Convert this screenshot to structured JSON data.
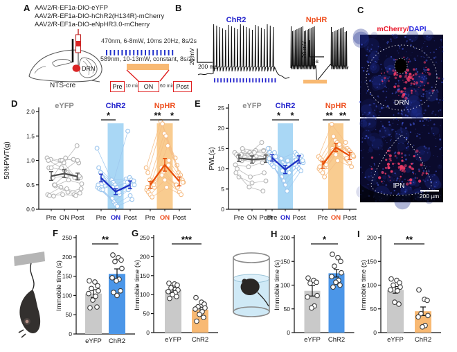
{
  "panels": {
    "A": "A",
    "B": "B",
    "C": "C",
    "D": "D",
    "E": "E",
    "F": "F",
    "G": "G",
    "H": "H",
    "I": "I"
  },
  "colors": {
    "chr2_blue": "#2222cc",
    "chr2_bar": "#4b96e8",
    "chr2_band": "#a9d7f5",
    "chr2_light": "#9cc6ee",
    "nphr_orange": "#ee4f1e",
    "nphr_bar": "#f8b973",
    "nphr_band": "#f9cc90",
    "nphr_light": "#f5bc84",
    "eyfp_gray": "#8c8c8c",
    "eyfp_dark": "#4d4d4d",
    "eyfp_light": "#b3b3b3",
    "gray_bar": "#c9c9c9",
    "red_accent": "#e02020"
  },
  "panelA": {
    "virus_lines": [
      "AAV2/R-EF1a-DIO-eYFP",
      "AAV2/R-EF1a-DIO-hChR2(H134R)-mCherry",
      "AAV2/R-EF1a-DIO-eNpHR3.0-mCherry"
    ],
    "injection_site": "DRN",
    "mouse_line": "NTS-cre",
    "protocol_blue": "470nm, 6-8mW, 10ms 20Hz, 8s/2s",
    "protocol_orange": "589nm, 10-13mW, constant, 8s/2s",
    "timeline": {
      "pre": "Pre",
      "pre_duration": "10 min",
      "on": "ON",
      "on_duration": "60 min",
      "post": "Post"
    }
  },
  "panelB": {
    "chr2_label": "ChR2",
    "nphr_label": "NpHR",
    "scale_left_v": "20 mV",
    "scale_left_h": "200 ms",
    "scale_mid_v": "20 mV",
    "scale_mid_h": "5s"
  },
  "panelC": {
    "title_red": "mCherry",
    "title_sep": "/",
    "title_blue": "DAPI",
    "region_top": "DRN",
    "region_bottom": "IPN",
    "scalebar": "200 µm"
  },
  "chart_data": [
    {
      "panel": "D",
      "type": "line",
      "ylabel": "50%PWT(g)",
      "ylim": [
        0,
        2
      ],
      "yticks": [
        "0.0",
        "0.5",
        "1.0",
        "1.5",
        "2.0"
      ],
      "categories": [
        "Pre",
        "ON",
        "Post"
      ],
      "groups": [
        {
          "name": "eYFP",
          "title_color": "#8c8c8c",
          "line_color": "#4d4d4d",
          "subject_color": "#b3b3b3",
          "band": null,
          "mean": [
            0.68,
            0.73,
            0.67
          ],
          "sem": [
            0.09,
            0.08,
            0.07
          ],
          "subjects": [
            [
              1.05,
              1.0,
              1.02
            ],
            [
              0.85,
              1.0,
              0.65
            ],
            [
              1.02,
              0.95,
              1.3
            ],
            [
              0.65,
              1.05,
              0.95
            ],
            [
              0.5,
              0.75,
              0.65
            ],
            [
              0.48,
              0.6,
              0.52
            ],
            [
              0.3,
              0.45,
              0.3
            ],
            [
              0.28,
              0.3,
              0.28
            ],
            [
              0.85,
              0.8,
              1.0
            ],
            [
              0.65,
              0.68,
              0.68
            ],
            [
              0.5,
              0.35,
              0.42
            ],
            [
              1.0,
              0.85,
              0.65
            ],
            [
              0.27,
              0.42,
              0.33
            ]
          ],
          "sig": []
        },
        {
          "name": "ChR2",
          "title_color": "#2222cc",
          "line_color": "#1b2fc4",
          "subject_color": "#9cc6ee",
          "band": "#a9d7f5",
          "mean": [
            0.64,
            0.36,
            0.5
          ],
          "sem": [
            0.08,
            0.06,
            0.08
          ],
          "subjects": [
            [
              1.25,
              0.6,
              0.62
            ],
            [
              0.85,
              0.55,
              1.6
            ],
            [
              0.75,
              0.5,
              0.65
            ],
            [
              0.65,
              0.45,
              0.6
            ],
            [
              0.6,
              0.38,
              0.55
            ],
            [
              0.48,
              0.3,
              0.5
            ],
            [
              0.45,
              0.22,
              0.45
            ],
            [
              0.42,
              0.15,
              0.4
            ],
            [
              0.4,
              0.1,
              0.28
            ],
            [
              0.4,
              0.06,
              0.2
            ],
            [
              0.55,
              0.35,
              0.58
            ],
            [
              0.5,
              0.45,
              0.55
            ]
          ],
          "sig": [
            {
              "pair": [
                0,
                1
              ],
              "stars": "*"
            }
          ]
        },
        {
          "name": "NpHR",
          "title_color": "#ee4f1e",
          "line_color": "#e8500a",
          "subject_color": "#f5bc84",
          "band": "#f9cc90",
          "mean": [
            0.5,
            0.91,
            0.57
          ],
          "sem": [
            0.07,
            0.13,
            0.09
          ],
          "subjects": [
            [
              0.85,
              1.8,
              1.05
            ],
            [
              0.75,
              1.75,
              0.9
            ],
            [
              0.6,
              1.55,
              0.75
            ],
            [
              0.55,
              1.5,
              0.7
            ],
            [
              0.5,
              1.3,
              0.6
            ],
            [
              0.45,
              1.0,
              0.55
            ],
            [
              0.4,
              0.85,
              0.5
            ],
            [
              0.35,
              0.75,
              0.45
            ],
            [
              0.3,
              0.6,
              0.35
            ],
            [
              0.25,
              0.45,
              0.3
            ],
            [
              0.5,
              0.9,
              0.55
            ],
            [
              0.45,
              0.7,
              0.5
            ]
          ],
          "sig": [
            {
              "pair": [
                0,
                1
              ],
              "stars": "**"
            },
            {
              "pair": [
                1,
                2
              ],
              "stars": "*"
            }
          ]
        }
      ]
    },
    {
      "panel": "E",
      "type": "line",
      "ylabel": "PWL(s)",
      "ylim": [
        0,
        25
      ],
      "yticks": [
        "0",
        "5",
        "10",
        "15",
        "20",
        "25"
      ],
      "categories": [
        "Pre",
        "ON",
        "Post"
      ],
      "groups": [
        {
          "name": "eYFP",
          "title_color": "#8c8c8c",
          "line_color": "#4d4d4d",
          "subject_color": "#b3b3b3",
          "band": null,
          "mean": [
            12.6,
            12.3,
            12.5
          ],
          "sem": [
            0.8,
            0.9,
            0.9
          ],
          "subjects": [
            [
              14,
              13.5,
              16.5
            ],
            [
              13.5,
              14,
              14.5
            ],
            [
              13,
              13.5,
              13
            ],
            [
              12.5,
              12,
              12.5
            ],
            [
              12,
              12.5,
              12
            ],
            [
              14.5,
              13,
              14
            ],
            [
              11,
              10.5,
              11.5
            ],
            [
              10,
              8,
              9
            ],
            [
              8,
              6.5,
              7
            ],
            [
              13,
              12.5,
              13.5
            ],
            [
              15,
              14.5,
              15
            ],
            [
              9,
              5.5,
              4.5
            ],
            [
              13.5,
              14,
              13.8
            ],
            [
              12.2,
              11.8,
              12.4
            ]
          ],
          "sig": []
        },
        {
          "name": "ChR2",
          "title_color": "#2222cc",
          "line_color": "#1b2fc4",
          "subject_color": "#9cc6ee",
          "band": "#a9d7f5",
          "mean": [
            12.7,
            9.8,
            12.3
          ],
          "sem": [
            0.8,
            1.0,
            0.9
          ],
          "subjects": [
            [
              15,
              12.5,
              14
            ],
            [
              14,
              11.5,
              13.5
            ],
            [
              13.5,
              11,
              13
            ],
            [
              13,
              10.5,
              12.5
            ],
            [
              12.5,
              10,
              12
            ],
            [
              12,
              9,
              11.5
            ],
            [
              12,
              8,
              11
            ],
            [
              11.5,
              7,
              10.5
            ],
            [
              11,
              6,
              10
            ],
            [
              10.5,
              4.5,
              9.5
            ],
            [
              13,
              11,
              12
            ],
            [
              12.5,
              9.5,
              12.2
            ],
            [
              14,
              12,
              13.2
            ]
          ],
          "sig": [
            {
              "pair": [
                0,
                1
              ],
              "stars": "*"
            },
            {
              "pair": [
                1,
                2
              ],
              "stars": "*"
            }
          ]
        },
        {
          "name": "NpHR",
          "title_color": "#ee4f1e",
          "line_color": "#e8500a",
          "subject_color": "#f5bc84",
          "band": "#f9cc90",
          "mean": [
            11.0,
            15.3,
            13.2
          ],
          "sem": [
            0.9,
            1.0,
            0.9
          ],
          "subjects": [
            [
              13,
              21,
              16.5
            ],
            [
              12.5,
              18,
              15
            ],
            [
              12,
              17,
              14.5
            ],
            [
              11.5,
              16.5,
              14
            ],
            [
              11,
              16,
              13.5
            ],
            [
              10.5,
              15.5,
              13
            ],
            [
              10,
              15,
              12.5
            ],
            [
              9.5,
              14,
              12
            ],
            [
              9,
              13.5,
              11.5
            ],
            [
              8,
              12,
              10.5
            ],
            [
              11,
              16,
              13.2
            ],
            [
              10.5,
              14.5,
              12.6
            ]
          ],
          "sig": [
            {
              "pair": [
                0,
                1
              ],
              "stars": "**"
            },
            {
              "pair": [
                1,
                2
              ],
              "stars": "**"
            }
          ]
        }
      ]
    },
    {
      "panel": "F",
      "type": "bar",
      "ylabel": "Immobile time (s)",
      "ylim": [
        0,
        250
      ],
      "yticks": [
        "0",
        "50",
        "100",
        "150",
        "200",
        "250"
      ],
      "categories": [
        "eYFP",
        "ChR2"
      ],
      "sig": "**",
      "bars": [
        {
          "name": "eYFP",
          "value": 105,
          "sem": 10,
          "color": "#c9c9c9",
          "points": [
            138,
            135,
            125,
            118,
            112,
            105,
            98,
            88,
            70,
            68
          ]
        },
        {
          "name": "ChR2",
          "value": 156,
          "sem": 13,
          "color": "#4b96e8",
          "points": [
            205,
            198,
            192,
            188,
            170,
            146,
            142,
            138,
            112,
            108,
            100
          ]
        }
      ]
    },
    {
      "panel": "G",
      "type": "bar",
      "ylabel": "Immobile time (s)",
      "ylim": [
        0,
        250
      ],
      "yticks": [
        "0",
        "50",
        "100",
        "150",
        "200",
        "250"
      ],
      "categories": [
        "eYFP",
        "ChR2"
      ],
      "sig": "***",
      "bars": [
        {
          "name": "eYFP",
          "value": 113,
          "sem": 6,
          "color": "#c9c9c9",
          "points": [
            130,
            128,
            125,
            118,
            112,
            108,
            105,
            100,
            95,
            90
          ]
        },
        {
          "name": "ChR2",
          "value": 60,
          "sem": 7,
          "color": "#f8b973",
          "points": [
            92,
            80,
            75,
            68,
            65,
            62,
            55,
            48,
            40,
            30
          ]
        }
      ]
    },
    {
      "panel": "H",
      "type": "bar",
      "ylabel": "Immobile time (s)",
      "ylim": [
        0,
        200
      ],
      "yticks": [
        "0",
        "50",
        "100",
        "150",
        "200"
      ],
      "categories": [
        "eYFP",
        "ChR2"
      ],
      "sig": "*",
      "bars": [
        {
          "name": "eYFP",
          "value": 88,
          "sem": 11,
          "color": "#c9c9c9",
          "points": [
            115,
            110,
            106,
            104,
            78,
            75,
            56,
            52
          ]
        },
        {
          "name": "ChR2",
          "value": 125,
          "sem": 8,
          "color": "#4b96e8",
          "points": [
            165,
            158,
            150,
            140,
            126,
            118,
            110,
            106,
            100,
            96
          ]
        }
      ]
    },
    {
      "panel": "I",
      "type": "bar",
      "ylabel": "Immobile time (s)",
      "ylim": [
        0,
        200
      ],
      "yticks": [
        "0",
        "50",
        "100",
        "150",
        "200"
      ],
      "categories": [
        "eYFP",
        "ChR2"
      ],
      "sig": "**",
      "bars": [
        {
          "name": "eYFP",
          "value": 90,
          "sem": 7,
          "color": "#c9c9c9",
          "points": [
            113,
            110,
            105,
            100,
            96,
            90,
            88,
            64,
            60
          ]
        },
        {
          "name": "ChR2",
          "value": 45,
          "sem": 9,
          "color": "#f8b973",
          "points": [
            90,
            70,
            68,
            40,
            36,
            33,
            15,
            12
          ]
        }
      ]
    }
  ]
}
